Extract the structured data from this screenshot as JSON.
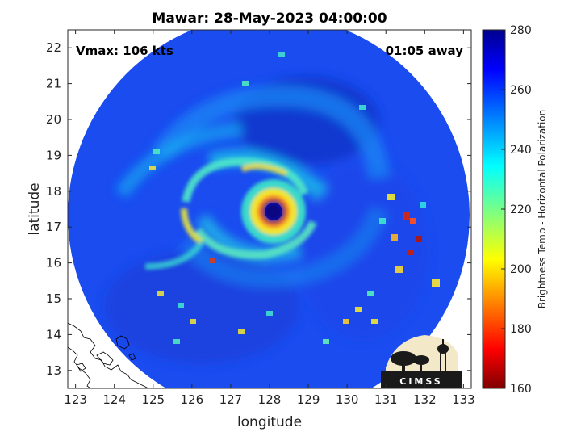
{
  "chart_data": {
    "type": "heatmap",
    "title": "Mawar: 28-May-2023 04:00:00",
    "xlabel": "longitude",
    "ylabel": "latitude",
    "xlim": [
      122.8,
      133.2
    ],
    "ylim": [
      12.5,
      22.5
    ],
    "x_ticks": [
      123,
      124,
      125,
      126,
      127,
      128,
      129,
      130,
      131,
      132,
      133
    ],
    "y_ticks": [
      13,
      14,
      15,
      16,
      17,
      18,
      19,
      20,
      21,
      22
    ],
    "colorbar": {
      "label": "Brightness Temp - Horizontal Polarization",
      "range": [
        160,
        280
      ],
      "ticks": [
        160,
        180,
        200,
        220,
        240,
        260,
        280
      ],
      "colormap": "jet"
    },
    "storm_center": {
      "lon": 128.05,
      "lat": 17.35
    },
    "annotations": {
      "vmax": "Vmax: 106 kts",
      "time_offset": "01:05 away"
    },
    "logo": "CIMSS"
  }
}
